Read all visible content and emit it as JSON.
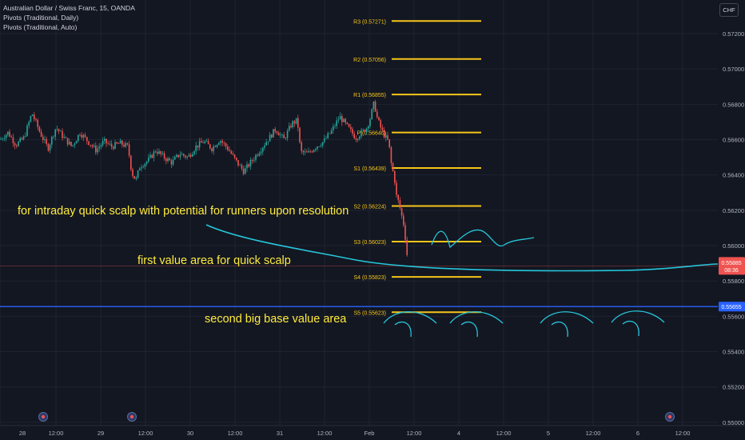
{
  "legend": {
    "title": "Australian Dollar / Swiss Franc, 15, OANDA",
    "ind1": "Pivots (Traditional, Daily)",
    "ind2": "Pivots (Traditional, Auto)"
  },
  "currency": "CHF",
  "colors": {
    "background": "#131722",
    "pivot": "#f5c518",
    "up": "#26a69a",
    "down": "#ef5350",
    "blue_line": "#2962ff",
    "curve": "#26c6da",
    "annotation": "#ffeb3b",
    "axis_text": "#b2b5be"
  },
  "chart_data": {
    "type": "candlestick",
    "symbol": "AUDCHF",
    "timeframe": "15",
    "y_axis": {
      "ylim": [
        0.549,
        0.5739
      ],
      "ticks": [
        "0.57200",
        "0.57000",
        "0.56800",
        "0.56600",
        "0.56400",
        "0.56200",
        "0.56000",
        "0.55800",
        "0.55600",
        "0.55400",
        "0.55200",
        "0.55000"
      ]
    },
    "x_axis": {
      "ticks": [
        "28",
        "12:00",
        "29",
        "12:00",
        "30",
        "12:00",
        "31",
        "12:00",
        "Feb",
        "12:00",
        "4",
        "12:00",
        "5",
        "12:00",
        "6",
        "12:00"
      ]
    },
    "pivots": [
      {
        "label": "R3 (0.57271)",
        "value": 0.57271
      },
      {
        "label": "R2 (0.57056)",
        "value": 0.57056
      },
      {
        "label": "R1 (0.56855)",
        "value": 0.56855
      },
      {
        "label": "P (0.56640)",
        "value": 0.5664
      },
      {
        "label": "S1 (0.56439)",
        "value": 0.56439
      },
      {
        "label": "S2 (0.56224)",
        "value": 0.56224
      },
      {
        "label": "S3 (0.56023)",
        "value": 0.56023
      },
      {
        "label": "S4 (0.55823)",
        "value": 0.55823
      },
      {
        "label": "S5 (0.55623)",
        "value": 0.55623
      }
    ],
    "price_path": [
      [
        0,
        0.566
      ],
      [
        10,
        0.5664
      ],
      [
        20,
        0.5657
      ],
      [
        30,
        0.5661
      ],
      [
        40,
        0.5675
      ],
      [
        50,
        0.5664
      ],
      [
        60,
        0.5655
      ],
      [
        70,
        0.5667
      ],
      [
        80,
        0.5661
      ],
      [
        90,
        0.5656
      ],
      [
        100,
        0.5664
      ],
      [
        110,
        0.5659
      ],
      [
        120,
        0.5654
      ],
      [
        130,
        0.5659
      ],
      [
        140,
        0.5656
      ],
      [
        150,
        0.5658
      ],
      [
        160,
        0.5656
      ],
      [
        165,
        0.5641
      ],
      [
        170,
        0.5637
      ],
      [
        175,
        0.5645
      ],
      [
        185,
        0.5648
      ],
      [
        195,
        0.5654
      ],
      [
        205,
        0.565
      ],
      [
        215,
        0.5647
      ],
      [
        225,
        0.5652
      ],
      [
        235,
        0.565
      ],
      [
        245,
        0.5656
      ],
      [
        255,
        0.5659
      ],
      [
        265,
        0.5655
      ],
      [
        275,
        0.566
      ],
      [
        285,
        0.5655
      ],
      [
        295,
        0.5648
      ],
      [
        305,
        0.5642
      ],
      [
        315,
        0.5648
      ],
      [
        325,
        0.5654
      ],
      [
        335,
        0.566
      ],
      [
        345,
        0.5666
      ],
      [
        355,
        0.566
      ],
      [
        365,
        0.5669
      ],
      [
        372,
        0.5671
      ],
      [
        376,
        0.5653
      ],
      [
        385,
        0.5652
      ],
      [
        395,
        0.5656
      ],
      [
        405,
        0.5659
      ],
      [
        415,
        0.5665
      ],
      [
        425,
        0.5673
      ],
      [
        435,
        0.5667
      ],
      [
        445,
        0.5661
      ],
      [
        452,
        0.5664
      ],
      [
        458,
        0.5666
      ],
      [
        463,
        0.5672
      ],
      [
        468,
        0.5681
      ],
      [
        472,
        0.5672
      ],
      [
        476,
        0.5667
      ],
      [
        480,
        0.5663
      ],
      [
        484,
        0.566
      ],
      [
        486,
        0.5659
      ],
      [
        488,
        0.5652
      ],
      [
        490,
        0.5644
      ],
      [
        493,
        0.564
      ],
      [
        496,
        0.5628
      ],
      [
        499,
        0.5624
      ],
      [
        502,
        0.5618
      ],
      [
        505,
        0.5612
      ],
      [
        508,
        0.5601
      ],
      [
        511,
        0.5586
      ]
    ],
    "current_price": {
      "label": "0.55885",
      "time": "08:36",
      "value": 0.55885
    },
    "horizontal_line": {
      "label": "0.55655",
      "value": 0.55655
    },
    "annotations": [
      "for intraday quick scalp with potential for runners upon resolution",
      "first value area for quick scalp",
      "second big base value area"
    ]
  }
}
